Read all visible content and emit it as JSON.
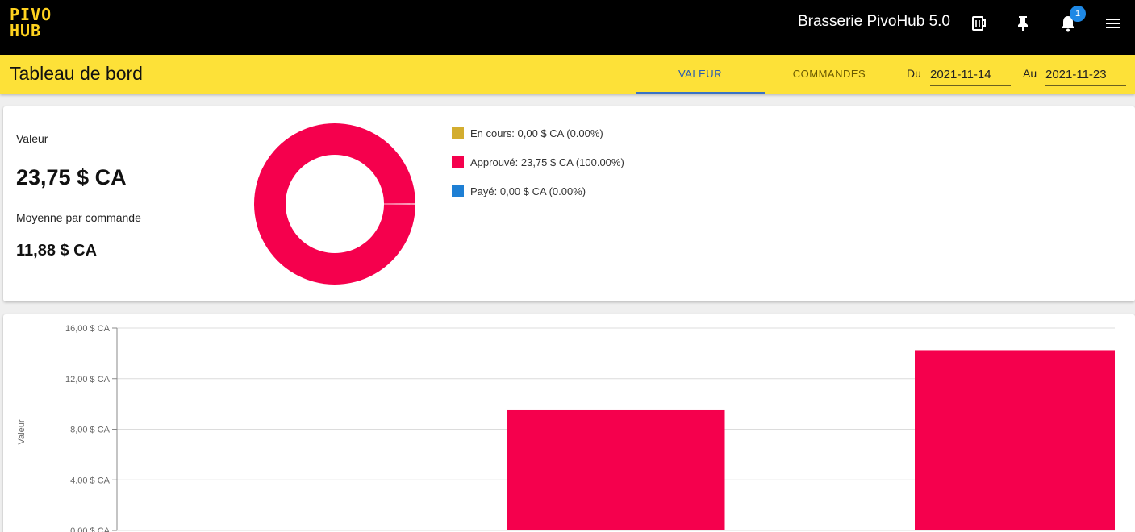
{
  "header": {
    "logo_line1": "PIVO",
    "logo_line2": "HUB",
    "app_title": "Brasserie PivoHub 5.0",
    "notification_count": "1",
    "icons": [
      "beer-menu-icon",
      "pin-icon",
      "bell-icon",
      "hamburger-menu-icon"
    ]
  },
  "subheader": {
    "title": "Tableau de bord",
    "tabs": [
      {
        "label": "VALEUR",
        "active": true
      },
      {
        "label": "COMMANDES",
        "active": false
      }
    ],
    "from_label": "Du",
    "from_value": "2021-11-14",
    "to_label": "Au",
    "to_value": "2021-11-23"
  },
  "summary": {
    "value_label": "Valeur",
    "value_total": "23,75 $ CA",
    "avg_label": "Moyenne par commande",
    "avg_value": "11,88 $ CA"
  },
  "colors": {
    "accent_yellow": "#fde138",
    "en_cours": "#d3ad2f",
    "approuve": "#f5004d",
    "paye": "#1e7fd4"
  },
  "chart_data": [
    {
      "type": "pie",
      "variant": "donut",
      "legend_placement": "right",
      "slices": [
        {
          "label": "En cours: 0,00 $ CA (0.00%)",
          "value": 0,
          "percent": 0,
          "color": "#d3ad2f"
        },
        {
          "label": "Approuvé: 23,75 $ CA (100.00%)",
          "value": 23.75,
          "percent": 100,
          "color": "#f5004d"
        },
        {
          "label": "Payé: 0,00 $ CA (0.00%)",
          "value": 0,
          "percent": 0,
          "color": "#1e7fd4"
        }
      ]
    },
    {
      "type": "bar",
      "ylabel": "Valeur",
      "ylim": [
        0,
        16
      ],
      "grid": true,
      "yticks": [
        {
          "value": 0,
          "label": "0,00 $ CA"
        },
        {
          "value": 4,
          "label": "4,00 $ CA"
        },
        {
          "value": 8,
          "label": "8,00 $ CA"
        },
        {
          "value": 12,
          "label": "12,00 $ CA"
        },
        {
          "value": 16,
          "label": "16,00 $ CA"
        }
      ],
      "bars": [
        {
          "value": 0
        },
        {
          "value": 9.5
        },
        {
          "value": 14.25
        }
      ],
      "color": "#f5004d"
    }
  ]
}
